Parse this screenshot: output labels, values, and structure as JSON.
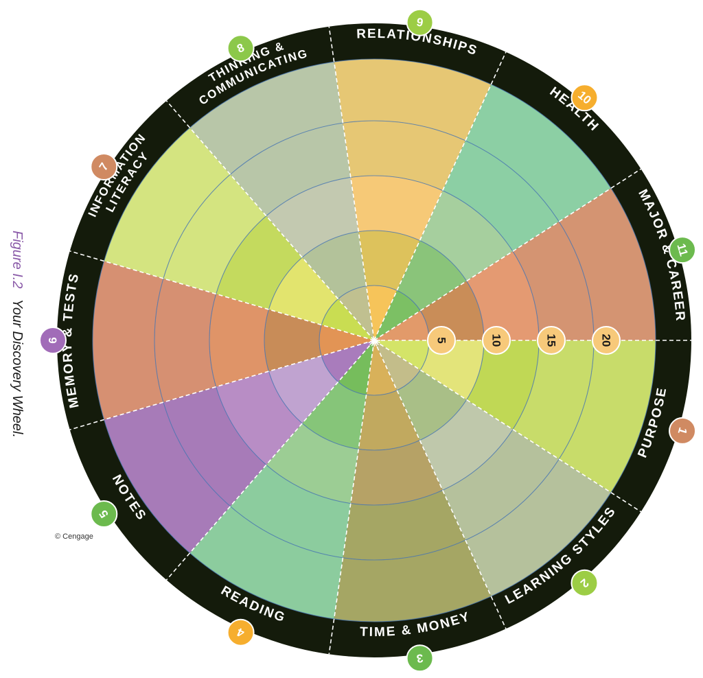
{
  "figure": {
    "label": "Figure I.2",
    "title": "Your Discovery Wheel."
  },
  "copyright": "© Cengage",
  "scale_labels": [
    "5",
    "10",
    "15",
    "20"
  ],
  "colors": {
    "ring": "#141b0b",
    "scale_badge": "#f7c97a",
    "divider": "#ffffff",
    "rings": "#4a78b5"
  },
  "sections": [
    {
      "number": "1",
      "title": "PURPOSE",
      "badge_color": "#d08a62",
      "colors": [
        "#c8dc6a",
        "#c0d855",
        "#e3e47a",
        "#d4e468"
      ]
    },
    {
      "number": "2",
      "title": "LEARNING STYLES",
      "badge_color": "#9ccd45",
      "colors": [
        "#b5c19c",
        "#bfc8ab",
        "#a9bf87",
        "#c3bd8a"
      ]
    },
    {
      "number": "3",
      "title": "TIME & MONEY",
      "badge_color": "#6cba4e",
      "colors": [
        "#a5a664",
        "#b6a266",
        "#c1a95f",
        "#d8b15a"
      ]
    },
    {
      "number": "4",
      "title": "READING",
      "badge_color": "#f6ae2e",
      "colors": [
        "#8ccc9e",
        "#9ccd94",
        "#86c579",
        "#76bd5c"
      ]
    },
    {
      "number": "5",
      "title": "NOTES",
      "badge_color": "#6cba4e",
      "colors": [
        "#a77bb8",
        "#b88dc5",
        "#c0a3d0",
        "#a97cbc"
      ]
    },
    {
      "number": "6",
      "title": "MEMORY & TESTS",
      "badge_color": "#a16cb8",
      "colors": [
        "#d69072",
        "#df9468",
        "#c88c58",
        "#e29455"
      ]
    },
    {
      "number": "7",
      "title": "INFORMATION LITERACY",
      "badge_color": "#d08a62",
      "colors": [
        "#d4e480",
        "#c4da5e",
        "#e2e46e",
        "#c9dd52"
      ]
    },
    {
      "number": "8",
      "title": "THINKING & COMMUNICATING",
      "badge_color": "#8cc84a",
      "colors": [
        "#b8c6a8",
        "#c3c9b0",
        "#b3c29a",
        "#c0c090"
      ]
    },
    {
      "number": "9",
      "title": "RELATIONSHIPS",
      "badge_color": "#9ccd45",
      "colors": [
        "#e6c774",
        "#f6c977",
        "#ddc25c",
        "#f6c45a"
      ]
    },
    {
      "number": "10",
      "title": "HEALTH",
      "badge_color": "#f6ae2e",
      "colors": [
        "#8ccfa4",
        "#a6cf9e",
        "#8ac47a",
        "#7cc064"
      ]
    },
    {
      "number": "11",
      "title": "MAJOR & CAREER",
      "badge_color": "#6cba4e",
      "colors": [
        "#d49472",
        "#e49a72",
        "#c98d58",
        "#e29a6a"
      ]
    }
  ]
}
